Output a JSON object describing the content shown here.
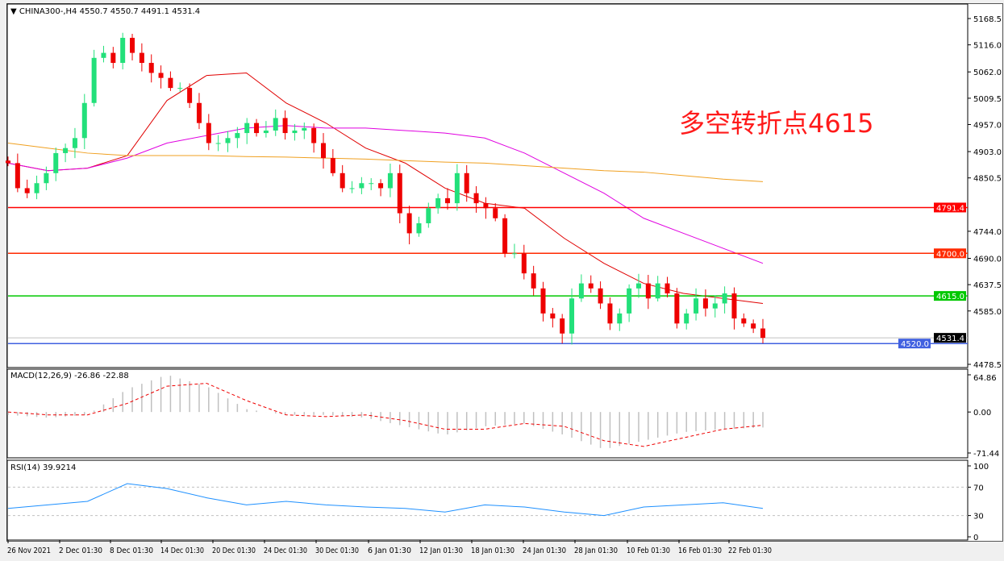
{
  "header": {
    "symbol_info": "CHINA300-,H4  4550.7 4550.7 4491.1 4531.4"
  },
  "annotation": "多空转折点4615",
  "macd": {
    "label": "MACD(12,26,9) -26.86 -22.88",
    "ticks": [
      "64.86",
      "0.00",
      "-71.44"
    ]
  },
  "rsi": {
    "label": "RSI(14) 39.9214",
    "ticks": [
      "100",
      "70",
      "30",
      "0"
    ]
  },
  "chart_data": {
    "type": "candlestick",
    "ylim": [
      4478.5,
      5168.5
    ],
    "price_ticks": [
      "5168.5",
      "5116.0",
      "5062.0",
      "5009.5",
      "4957.0",
      "4903.0",
      "4850.5",
      "4744.0",
      "4690.0",
      "4637.5",
      "4585.0",
      "4478.5"
    ],
    "time_ticks": [
      "26 Nov 2021",
      "2 Dec 01:30",
      "8 Dec 01:30",
      "14 Dec 01:30",
      "20 Dec 01:30",
      "24 Dec 01:30",
      "30 Dec 01:30",
      "6 Jan 01:30",
      "12 Jan 01:30",
      "18 Jan 01:30",
      "24 Jan 01:30",
      "28 Jan 01:30",
      "10 Feb 01:30",
      "16 Feb 01:30",
      "22 Feb 01:30"
    ],
    "closes": [
      4880,
      4830,
      4820,
      4840,
      4860,
      4900,
      4910,
      4930,
      5000,
      5090,
      5100,
      5080,
      5130,
      5100,
      5080,
      5060,
      5050,
      5030,
      5030,
      5000,
      4960,
      4920,
      4920,
      4930,
      4940,
      4960,
      4940,
      4945,
      4970,
      4940,
      4945,
      4950,
      4920,
      4890,
      4860,
      4830,
      4830,
      4840,
      4840,
      4830,
      4860,
      4780,
      4740,
      4760,
      4790,
      4810,
      4800,
      4860,
      4820,
      4800,
      4790,
      4770,
      4700,
      4700,
      4660,
      4630,
      4580,
      4570,
      4540,
      4610,
      4640,
      4630,
      4600,
      4560,
      4580,
      4630,
      4640,
      4610,
      4640,
      4620,
      4560,
      4580,
      4610,
      4590,
      4600,
      4620,
      4570,
      4560,
      4550,
      4531.4
    ],
    "moving_averages": [
      {
        "color": "#e00000",
        "values": [
          4880,
          4865,
          4870,
          4895,
          5005,
          5055,
          5060,
          5000,
          4960,
          4910,
          4880,
          4830,
          4800,
          4790,
          4730,
          4680,
          4640,
          4620,
          4610,
          4600
        ]
      },
      {
        "color": "#e000e0",
        "values": [
          4880,
          4865,
          4870,
          4890,
          4920,
          4935,
          4950,
          4955,
          4950,
          4950,
          4945,
          4940,
          4930,
          4900,
          4860,
          4820,
          4770,
          4740,
          4710,
          4680
        ]
      },
      {
        "color": "#f0a020",
        "values": [
          4920,
          4910,
          4900,
          4895,
          4895,
          4895,
          4893,
          4892,
          4890,
          4888,
          4885,
          4882,
          4880,
          4875,
          4870,
          4865,
          4862,
          4855,
          4848,
          4843
        ]
      }
    ],
    "levels": [
      {
        "value": "4791.4",
        "color": "#ff0000"
      },
      {
        "value": "4700.0",
        "color": "#ff2a00"
      },
      {
        "value": "4615.0",
        "color": "#00c800"
      },
      {
        "value": "4531.4",
        "color": "#000000",
        "line": "#c0c0c0"
      },
      {
        "value": "4520.0",
        "color": "#4060e0"
      }
    ],
    "macd_hist": [
      -5,
      -10,
      -5,
      40,
      65,
      45,
      5,
      -5,
      -5,
      -10,
      -25,
      -40,
      -25,
      -20,
      -40,
      -65,
      -50,
      -35,
      -30,
      -27
    ],
    "macd_signal": [
      0,
      -5,
      -5,
      15,
      45,
      50,
      20,
      -5,
      -8,
      -5,
      -15,
      -30,
      -30,
      -20,
      -25,
      -50,
      -60,
      -45,
      -30,
      -23
    ],
    "macd_ylim": [
      -71.44,
      64.86
    ],
    "rsi_values": [
      40,
      45,
      50,
      75,
      68,
      55,
      45,
      50,
      45,
      42,
      40,
      35,
      45,
      42,
      35,
      30,
      42,
      45,
      48,
      40
    ],
    "rsi_levels": [
      70,
      30
    ],
    "colors": {
      "bull": "#22e07a",
      "bear": "#ee0000"
    }
  }
}
